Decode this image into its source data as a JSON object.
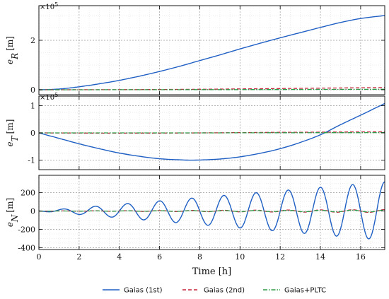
{
  "chart_data": [
    {
      "type": "line",
      "ylabel_main": "e",
      "ylabel_sub": "R",
      "ylabel_unit": "[m]",
      "yscale": "×10",
      "yscale_exp": "5",
      "xlim": [
        0,
        17.2
      ],
      "ylim": [
        -0.2,
        3.4
      ],
      "yticks": [
        0,
        2
      ],
      "grid": true,
      "series": [
        {
          "name": "Gaias (1st)",
          "style": "solid",
          "color": "#1f5fc4",
          "x": [
            0,
            1,
            2,
            3,
            4,
            5,
            6,
            7,
            8,
            9,
            10,
            11,
            12,
            13,
            14,
            15,
            16,
            17.2
          ],
          "y": [
            0,
            0.03,
            0.12,
            0.24,
            0.38,
            0.55,
            0.74,
            0.95,
            1.18,
            1.41,
            1.65,
            1.88,
            2.1,
            2.31,
            2.52,
            2.72,
            2.88,
            3.0
          ]
        },
        {
          "name": "Gaias (2nd)",
          "style": "dashed",
          "color": "#c4273b",
          "x": [
            0,
            4,
            8,
            12,
            17.2
          ],
          "y": [
            0,
            0.005,
            0.02,
            0.05,
            0.09
          ]
        },
        {
          "name": "Gaias+PLTC",
          "style": "dashdot",
          "color": "#2e9b4a",
          "x": [
            0,
            4,
            8,
            12,
            17.2
          ],
          "y": [
            0,
            0.002,
            0.005,
            0.01,
            0.02
          ]
        }
      ]
    },
    {
      "type": "line",
      "ylabel_main": "e",
      "ylabel_sub": "T",
      "ylabel_unit": "[m]",
      "yscale": "×10",
      "yscale_exp": "5",
      "xlim": [
        0,
        17.2
      ],
      "ylim": [
        -1.35,
        1.35
      ],
      "yticks": [
        -1,
        0,
        1
      ],
      "grid": true,
      "series": [
        {
          "name": "Gaias (1st)",
          "style": "solid",
          "color": "#1f5fc4",
          "x": [
            0,
            1,
            2,
            3,
            4,
            5,
            6,
            7,
            7.8,
            9,
            10,
            11,
            12,
            13,
            14,
            15,
            16,
            17.2
          ],
          "y": [
            0,
            -0.2,
            -0.4,
            -0.58,
            -0.74,
            -0.86,
            -0.95,
            -0.99,
            -1.0,
            -0.96,
            -0.88,
            -0.75,
            -0.58,
            -0.35,
            -0.07,
            0.3,
            0.65,
            1.08
          ]
        },
        {
          "name": "Gaias (2nd)",
          "style": "dashed",
          "color": "#c4273b",
          "x": [
            0,
            4,
            8,
            12,
            17.2
          ],
          "y": [
            0,
            -0.01,
            0.0,
            0.02,
            0.04
          ]
        },
        {
          "name": "Gaias+PLTC",
          "style": "dashdot",
          "color": "#2e9b4a",
          "x": [
            0,
            4,
            8,
            12,
            17.2
          ],
          "y": [
            0,
            0.0,
            0.0,
            0.005,
            0.01
          ]
        }
      ]
    },
    {
      "type": "line",
      "ylabel_main": "e",
      "ylabel_sub": "N",
      "ylabel_unit": "[m]",
      "xlim": [
        0,
        17.2
      ],
      "ylim": [
        -420,
        390
      ],
      "yticks": [
        -400,
        -200,
        0,
        200
      ],
      "grid": true,
      "osc_period_h": 1.6,
      "osc_amplitude_per_h": 18.5,
      "series": [
        {
          "name": "Gaias (1st)",
          "style": "solid",
          "color": "#1f5fc4",
          "amp_rate": 18.5
        },
        {
          "name": "Gaias (2nd)",
          "style": "dashed",
          "color": "#c4273b",
          "amp_rate": 0.9
        },
        {
          "name": "Gaias+PLTC",
          "style": "dashdot",
          "color": "#2e9b4a",
          "amp_rate": 0.6
        }
      ]
    }
  ],
  "xaxis": {
    "label": "Time [h]",
    "ticks": [
      0,
      2,
      4,
      6,
      8,
      10,
      12,
      14,
      16
    ]
  },
  "legend": {
    "placement": "bottom",
    "items": [
      {
        "label": "Gaias (1st)",
        "style": "solid",
        "color": "#1f5fc4"
      },
      {
        "label": "Gaias (2nd)",
        "style": "dashed",
        "color": "#c4273b"
      },
      {
        "label": "Gaias+PLTC",
        "style": "dashdot",
        "color": "#2e9b4a"
      }
    ]
  }
}
